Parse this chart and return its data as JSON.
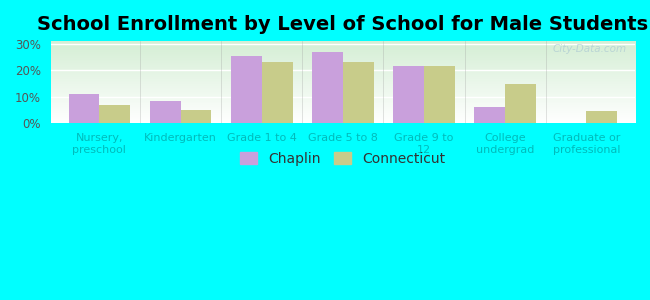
{
  "title": "School Enrollment by Level of School for Male Students",
  "categories": [
    "Nursery,\npreschool",
    "Kindergarten",
    "Grade 1 to 4",
    "Grade 5 to 8",
    "Grade 9 to\n12",
    "College\nundergrad",
    "Graduate or\nprofessional"
  ],
  "chaplin": [
    11.0,
    8.5,
    25.5,
    27.0,
    21.5,
    6.0,
    0.0
  ],
  "connecticut": [
    7.0,
    5.0,
    23.0,
    23.0,
    21.5,
    15.0,
    4.5
  ],
  "chaplin_color": "#c9a0dc",
  "connecticut_color": "#c8cc8a",
  "background_color": "#00ffff",
  "yticks": [
    0,
    10,
    20,
    30
  ],
  "ylim": [
    0,
    31
  ],
  "bar_width": 0.38,
  "legend_chaplin": "Chaplin",
  "legend_connecticut": "Connecticut",
  "watermark": "City-Data.com",
  "title_fontsize": 14,
  "tick_fontsize": 8,
  "legend_fontsize": 10
}
